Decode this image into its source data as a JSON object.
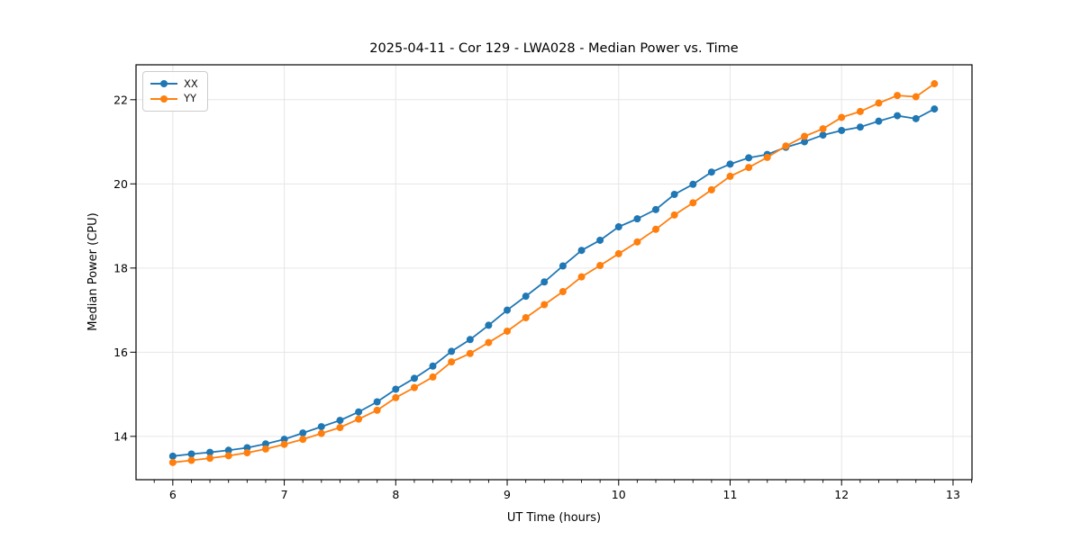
{
  "chart_data": {
    "type": "line",
    "title": "2025-04-11 - Cor 129 - LWA028 - Median Power vs. Time",
    "xlabel": "UT Time (hours)",
    "ylabel": "Median Power (CPU)",
    "x": [
      6.0,
      6.167,
      6.333,
      6.5,
      6.667,
      6.833,
      7.0,
      7.167,
      7.333,
      7.5,
      7.667,
      7.833,
      8.0,
      8.167,
      8.333,
      8.5,
      8.667,
      8.833,
      9.0,
      9.167,
      9.333,
      9.5,
      9.667,
      9.833,
      10.0,
      10.167,
      10.333,
      10.5,
      10.667,
      10.833,
      11.0,
      11.167,
      11.333,
      11.5,
      11.667,
      11.833,
      12.0,
      12.167,
      12.333,
      12.5,
      12.667,
      12.833
    ],
    "series": [
      {
        "name": "XX",
        "color": "#1f77b4",
        "marker": "circle",
        "values": [
          13.53,
          13.58,
          13.62,
          13.67,
          13.73,
          13.82,
          13.93,
          14.08,
          14.23,
          14.38,
          14.58,
          14.82,
          15.12,
          15.38,
          15.67,
          16.02,
          16.3,
          16.64,
          17.0,
          17.33,
          17.67,
          18.05,
          18.42,
          18.66,
          18.98,
          19.17,
          19.39,
          19.75,
          19.99,
          20.28,
          20.47,
          20.62,
          20.7,
          20.87,
          21.0,
          21.16,
          21.27,
          21.35,
          21.49,
          21.62,
          21.55,
          21.78
        ]
      },
      {
        "name": "YY",
        "color": "#ff7f0e",
        "marker": "circle",
        "values": [
          13.38,
          13.43,
          13.48,
          13.54,
          13.61,
          13.7,
          13.81,
          13.93,
          14.07,
          14.21,
          14.41,
          14.62,
          14.92,
          15.16,
          15.41,
          15.77,
          15.97,
          16.23,
          16.5,
          16.82,
          17.13,
          17.44,
          17.79,
          18.06,
          18.34,
          18.62,
          18.92,
          19.26,
          19.55,
          19.86,
          20.18,
          20.39,
          20.63,
          20.9,
          21.13,
          21.31,
          21.58,
          21.72,
          21.92,
          22.1,
          22.07,
          22.38
        ]
      }
    ],
    "xticks": [
      6,
      7,
      8,
      9,
      10,
      11,
      12,
      13
    ],
    "yticks": [
      14,
      16,
      18,
      20,
      22
    ],
    "xlim": [
      5.67,
      13.17
    ],
    "ylim": [
      12.97,
      22.83
    ],
    "minor_xtick_step": 0.1667,
    "grid": true,
    "grid_color": "#e6e6e6",
    "axis_color": "#000000",
    "background": "#ffffff",
    "legend_position": "upper left"
  }
}
